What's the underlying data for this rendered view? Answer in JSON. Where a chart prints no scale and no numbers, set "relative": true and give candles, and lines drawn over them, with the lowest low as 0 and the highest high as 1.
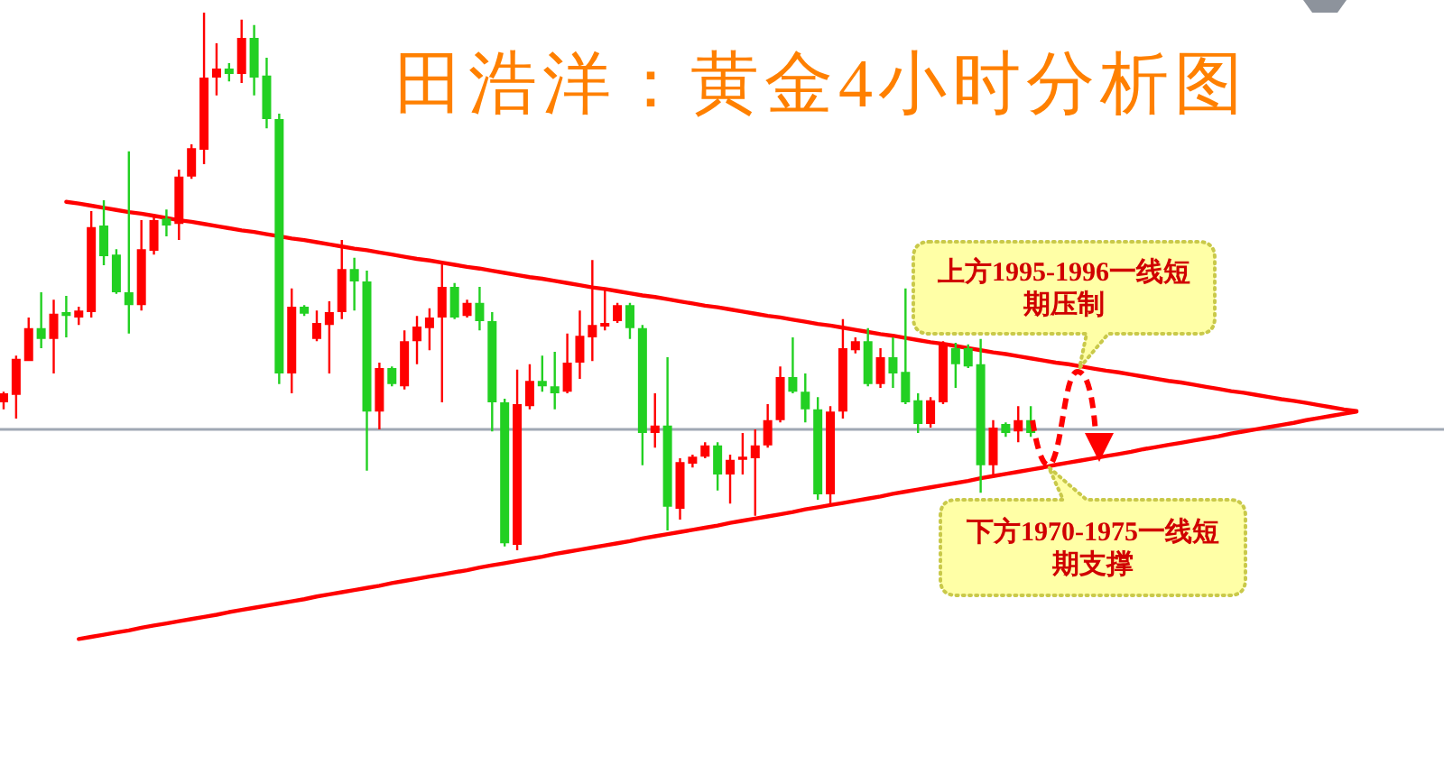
{
  "chart_data": {
    "type": "candlestick",
    "title": "田浩洋：黄金4小时分析图",
    "relative": true,
    "categories": [
      null,
      null,
      null,
      null,
      null,
      null,
      null,
      null,
      null,
      null,
      null,
      null,
      null,
      null,
      null,
      null,
      null,
      null,
      null,
      null,
      null,
      null,
      null,
      null,
      null,
      null,
      null,
      null,
      null,
      null,
      null,
      null,
      null,
      null,
      null,
      null,
      null,
      null,
      null,
      null,
      null,
      null,
      null,
      null,
      null,
      null,
      null,
      null,
      null,
      null,
      null,
      null,
      null,
      null,
      null,
      null,
      null,
      null,
      null,
      null,
      null,
      null,
      null,
      null,
      null,
      null,
      null,
      null,
      null,
      null,
      null,
      null,
      null,
      null,
      null,
      null,
      null,
      null,
      null,
      null,
      null,
      null,
      null,
      null,
      null,
      null,
      null,
      null,
      null,
      null,
      null,
      null,
      null,
      null,
      null,
      null,
      null,
      null,
      null,
      null,
      null,
      null,
      null,
      null,
      null,
      null,
      null,
      null,
      null
    ],
    "ohlc": [
      [
        0.275,
        0.295,
        0.262,
        0.292
      ],
      [
        0.289,
        0.362,
        0.245,
        0.356
      ],
      [
        0.352,
        0.433,
        0.352,
        0.413
      ],
      [
        0.413,
        0.48,
        0.376,
        0.393
      ],
      [
        0.393,
        0.466,
        0.329,
        0.44
      ],
      [
        0.443,
        0.473,
        0.396,
        0.436
      ],
      [
        0.433,
        0.453,
        0.419,
        0.446
      ],
      [
        0.443,
        0.631,
        0.433,
        0.601
      ],
      [
        0.604,
        0.651,
        0.53,
        0.547
      ],
      [
        0.55,
        0.56,
        0.477,
        0.48
      ],
      [
        0.48,
        0.742,
        0.403,
        0.456
      ],
      [
        0.456,
        0.614,
        0.446,
        0.56
      ],
      [
        0.557,
        0.621,
        0.55,
        0.614
      ],
      [
        0.617,
        0.634,
        0.584,
        0.604
      ],
      [
        0.607,
        0.708,
        0.577,
        0.695
      ],
      [
        0.695,
        0.755,
        0.691,
        0.748
      ],
      [
        0.745,
        1.0,
        0.718,
        0.879
      ],
      [
        0.879,
        0.943,
        0.846,
        0.896
      ],
      [
        0.896,
        0.906,
        0.872,
        0.886
      ],
      [
        0.886,
        0.987,
        0.869,
        0.953
      ],
      [
        0.953,
        0.977,
        0.846,
        0.879
      ],
      [
        0.883,
        0.916,
        0.785,
        0.802
      ],
      [
        0.802,
        0.812,
        0.309,
        0.329
      ],
      [
        0.329,
        0.487,
        0.292,
        0.453
      ],
      [
        0.453,
        0.456,
        0.436,
        0.44
      ],
      [
        0.393,
        0.446,
        0.389,
        0.423
      ],
      [
        0.419,
        0.463,
        0.329,
        0.443
      ],
      [
        0.443,
        0.577,
        0.43,
        0.523
      ],
      [
        0.523,
        0.544,
        0.446,
        0.5
      ],
      [
        0.5,
        0.52,
        0.148,
        0.258
      ],
      [
        0.258,
        0.349,
        0.225,
        0.339
      ],
      [
        0.339,
        0.342,
        0.305,
        0.309
      ],
      [
        0.305,
        0.409,
        0.299,
        0.389
      ],
      [
        0.389,
        0.436,
        0.346,
        0.416
      ],
      [
        0.413,
        0.45,
        0.372,
        0.433
      ],
      [
        0.433,
        0.534,
        0.275,
        0.49
      ],
      [
        0.49,
        0.497,
        0.43,
        0.433
      ],
      [
        0.436,
        0.466,
        0.433,
        0.46
      ],
      [
        0.46,
        0.49,
        0.409,
        0.426
      ],
      [
        0.426,
        0.443,
        0.221,
        0.275
      ],
      [
        0.275,
        0.282,
        0.007,
        0.013
      ],
      [
        0.01,
        0.336,
        0,
        0.272
      ],
      [
        0.268,
        0.346,
        0.262,
        0.315
      ],
      [
        0.315,
        0.362,
        0.295,
        0.305
      ],
      [
        0.305,
        0.369,
        0.262,
        0.292
      ],
      [
        0.295,
        0.403,
        0.292,
        0.349
      ],
      [
        0.349,
        0.446,
        0.319,
        0.399
      ],
      [
        0.396,
        0.54,
        0.352,
        0.419
      ],
      [
        0.416,
        0.487,
        0.409,
        0.423
      ],
      [
        0.426,
        0.46,
        0.423,
        0.456
      ],
      [
        0.456,
        0.46,
        0.393,
        0.413
      ],
      [
        0.413,
        0.419,
        0.158,
        0.218
      ],
      [
        0.218,
        0.292,
        0.191,
        0.232
      ],
      [
        0.232,
        0.359,
        0.037,
        0.081
      ],
      [
        0.077,
        0.171,
        0.057,
        0.164
      ],
      [
        0.161,
        0.178,
        0.154,
        0.174
      ],
      [
        0.174,
        0.201,
        0.171,
        0.195
      ],
      [
        0.195,
        0.201,
        0.111,
        0.141
      ],
      [
        0.141,
        0.178,
        0.087,
        0.168
      ],
      [
        0.168,
        0.218,
        0.141,
        0.174
      ],
      [
        0.171,
        0.225,
        0.064,
        0.195
      ],
      [
        0.195,
        0.272,
        0.191,
        0.242
      ],
      [
        0.242,
        0.342,
        0.238,
        0.322
      ],
      [
        0.322,
        0.396,
        0.292,
        0.295
      ],
      [
        0.295,
        0.329,
        0.238,
        0.262
      ],
      [
        0.262,
        0.285,
        0.094,
        0.104
      ],
      [
        0.104,
        0.268,
        0.087,
        0.258
      ],
      [
        0.258,
        0.43,
        0.245,
        0.376
      ],
      [
        0.372,
        0.396,
        0.366,
        0.389
      ],
      [
        0.389,
        0.413,
        0.305,
        0.309
      ],
      [
        0.309,
        0.376,
        0.302,
        0.359
      ],
      [
        0.359,
        0.396,
        0.302,
        0.329
      ],
      [
        0.332,
        0.487,
        0.272,
        0.275
      ],
      [
        0.279,
        0.292,
        0.218,
        0.235
      ],
      [
        0.235,
        0.285,
        0.228,
        0.279
      ],
      [
        0.275,
        0.389,
        0.272,
        0.386
      ],
      [
        0.376,
        0.386,
        0.302,
        0.346
      ],
      [
        0.376,
        0.383,
        0.339,
        0.342
      ],
      [
        0.346,
        0.393,
        0.107,
        0.158
      ],
      [
        0.158,
        0.242,
        0.141,
        0.228
      ],
      [
        0.235,
        0.238,
        0.211,
        0.218
      ],
      [
        0.221,
        0.268,
        0.201,
        0.242
      ],
      [
        0.242,
        0.268,
        0.211,
        0.218
      ],
      null,
      null,
      null,
      null,
      null,
      null,
      null,
      null,
      null,
      null,
      null,
      null,
      null,
      null,
      null,
      null,
      null,
      null,
      null,
      null,
      null,
      null,
      null,
      null,
      null,
      null
    ],
    "colors": [
      "#ff0000",
      "#ff0000",
      "#ff0000",
      "#22d022",
      "#ff0000",
      "#22d022",
      "#ff0000",
      "#ff0000",
      "#22d022",
      "#22d022",
      "#22d022",
      "#ff0000",
      "#ff0000",
      "#22d022",
      "#ff0000",
      "#ff0000",
      "#ff0000",
      "#ff0000",
      "#22d022",
      "#ff0000",
      "#22d022",
      "#22d022",
      "#22d022",
      "#ff0000",
      "#22d022",
      "#ff0000",
      "#ff0000",
      "#ff0000",
      "#22d022",
      "#22d022",
      "#ff0000",
      "#22d022",
      "#ff0000",
      "#ff0000",
      "#ff0000",
      "#ff0000",
      "#22d022",
      "#ff0000",
      "#22d022",
      "#22d022",
      "#22d022",
      "#ff0000",
      "#ff0000",
      "#22d022",
      "#22d022",
      "#ff0000",
      "#ff0000",
      "#ff0000",
      "#ff0000",
      "#ff0000",
      "#22d022",
      "#22d022",
      "#ff0000",
      "#22d022",
      "#ff0000",
      "#ff0000",
      "#ff0000",
      "#22d022",
      "#ff0000",
      "#ff0000",
      "#ff0000",
      "#ff0000",
      "#ff0000",
      "#22d022",
      "#22d022",
      "#22d022",
      "#ff0000",
      "#ff0000",
      "#ff0000",
      "#22d022",
      "#ff0000",
      "#22d022",
      "#22d022",
      "#22d022",
      "#ff0000",
      "#ff0000",
      "#22d022",
      "#22d022",
      "#22d022",
      "#ff0000",
      "#22d022",
      "#ff0000",
      "#22d022",
      null,
      null,
      null,
      null,
      null,
      null,
      null,
      null,
      null,
      null,
      null,
      null,
      null,
      null,
      null,
      null,
      null,
      null,
      null,
      null,
      null,
      null,
      null,
      null,
      null,
      null
    ],
    "series": [
      {
        "type": "line",
        "color": "#ff0000",
        "values": [
          null,
          null,
          null,
          null,
          null,
          0.648,
          0.645,
          0.641,
          0.637,
          0.633,
          0.629,
          0.626,
          0.622,
          0.618,
          0.614,
          0.611,
          0.607,
          0.603,
          0.599,
          0.595,
          0.592,
          0.588,
          0.584,
          0.58,
          0.577,
          0.573,
          0.569,
          0.565,
          0.561,
          0.558,
          0.554,
          0.55,
          0.546,
          0.542,
          0.539,
          0.535,
          0.531,
          0.527,
          0.524,
          0.52,
          0.516,
          0.512,
          0.508,
          0.505,
          0.501,
          0.497,
          0.493,
          0.489,
          0.486,
          0.482,
          0.478,
          0.474,
          0.471,
          0.467,
          0.463,
          0.459,
          0.455,
          0.452,
          0.448,
          0.444,
          0.44,
          0.436,
          0.433,
          0.429,
          0.425,
          0.421,
          0.418,
          0.414,
          0.41,
          0.406,
          0.402,
          0.399,
          0.395,
          0.391,
          0.387,
          0.384,
          0.38,
          0.376,
          0.372,
          0.368,
          0.365,
          0.361,
          0.357,
          0.353,
          0.349,
          0.346,
          0.342,
          0.338,
          0.334,
          0.331,
          0.327,
          0.323,
          0.319,
          0.315,
          0.312,
          0.308,
          0.304,
          0.3,
          0.296,
          0.293,
          0.289,
          0.285,
          0.281,
          0.278,
          0.274,
          0.27,
          0.266,
          0.262,
          0.259
        ]
      },
      {
        "type": "line",
        "color": "#ff0000",
        "values": [
          null,
          null,
          null,
          null,
          null,
          null,
          -0.165,
          -0.161,
          -0.157,
          -0.153,
          -0.149,
          -0.144,
          -0.14,
          -0.136,
          -0.132,
          -0.128,
          -0.124,
          -0.12,
          -0.115,
          -0.111,
          -0.107,
          -0.103,
          -0.099,
          -0.095,
          -0.091,
          -0.086,
          -0.082,
          -0.078,
          -0.074,
          -0.07,
          -0.066,
          -0.061,
          -0.057,
          -0.053,
          -0.049,
          -0.045,
          -0.041,
          -0.037,
          -0.032,
          -0.028,
          -0.024,
          -0.02,
          -0.016,
          -0.012,
          -0.007,
          -0.003,
          0.001,
          0.005,
          0.009,
          0.013,
          0.017,
          0.022,
          0.026,
          0.03,
          0.034,
          0.038,
          0.042,
          0.046,
          0.051,
          0.055,
          0.059,
          0.063,
          0.067,
          0.071,
          0.076,
          0.08,
          0.084,
          0.088,
          0.092,
          0.096,
          0.1,
          0.105,
          0.109,
          0.113,
          0.117,
          0.121,
          0.125,
          0.129,
          0.134,
          0.138,
          0.142,
          0.146,
          0.15,
          0.154,
          0.159,
          0.163,
          0.167,
          0.171,
          0.175,
          0.179,
          0.183,
          0.188,
          0.192,
          0.196,
          0.2,
          0.204,
          0.208,
          0.212,
          0.217,
          0.221,
          0.225,
          0.229,
          0.233,
          0.237,
          0.242,
          0.246,
          0.25,
          0.254,
          0.258
        ]
      }
    ],
    "ref_lines": [
      {
        "axis": "y",
        "value": 0.225,
        "color": "#a0a8b4"
      }
    ],
    "annotations": [
      "上方1995-1996一线短期压制",
      "下方1970-1975一线短期支撑"
    ]
  }
}
